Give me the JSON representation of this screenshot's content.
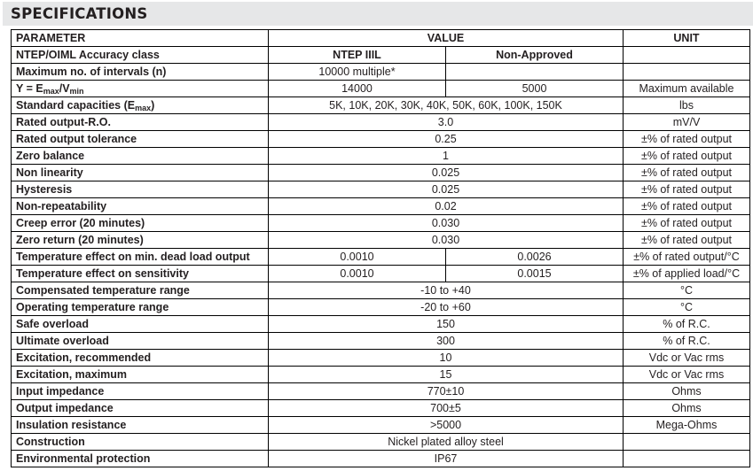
{
  "title": "SPECIFICATIONS",
  "headers": {
    "parameter": "PARAMETER",
    "value": "VALUE",
    "unit": "UNIT"
  },
  "accuracy": {
    "label": "NTEP/OIML Accuracy class",
    "v1": "NTEP IIIL",
    "v2": "Non-Approved"
  },
  "intervals": {
    "label": "Maximum no. of intervals (n)",
    "v1": "10000 multiple*"
  },
  "y": {
    "label_a": "Y = E",
    "sub1": "max",
    "label_b": "/V",
    "sub2": "min",
    "v1": "14000",
    "v2": "5000",
    "unit": "Maximum available"
  },
  "capacities": {
    "label_a": "Standard capacities (E",
    "sub": "max",
    "label_b": ")",
    "value": "5K, 10K, 20K, 30K, 40K, 50K, 60K, 100K, 150K",
    "unit": "lbs"
  },
  "rows_a": [
    {
      "p": "Rated output-R.O.",
      "v": "3.0",
      "u": "mV/V"
    },
    {
      "p": "Rated output tolerance",
      "v": "0.25",
      "u": "±% of rated output"
    },
    {
      "p": "Zero balance",
      "v": "1",
      "u": "±% of rated output"
    },
    {
      "p": "Non linearity",
      "v": "0.025",
      "u": "±% of rated output"
    },
    {
      "p": "Hysteresis",
      "v": "0.025",
      "u": "±% of rated output"
    },
    {
      "p": "Non-repeatability",
      "v": "0.02",
      "u": "±% of rated output"
    },
    {
      "p": "Creep error (20 minutes)",
      "v": "0.030",
      "u": "±% of rated output"
    },
    {
      "p": "Zero return (20 minutes)",
      "v": "0.030",
      "u": "±% of rated output"
    }
  ],
  "rows_split": [
    {
      "p": "Temperature effect on min. dead load output",
      "v1": "0.0010",
      "v2": "0.0026",
      "u": "±% of rated output/°C"
    },
    {
      "p": "Temperature effect on sensitivity",
      "v1": "0.0010",
      "v2": "0.0015",
      "u": "±% of applied load/°C"
    }
  ],
  "rows_b": [
    {
      "p": "Compensated temperature range",
      "v": "-10 to +40",
      "u": "°C"
    },
    {
      "p": "Operating temperature range",
      "v": "-20 to +60",
      "u": "°C"
    },
    {
      "p": "Safe overload",
      "v": "150",
      "u": "% of R.C."
    },
    {
      "p": "Ultimate overload",
      "v": "300",
      "u": "% of R.C."
    },
    {
      "p": "Excitation, recommended",
      "v": "10",
      "u": "Vdc or Vac rms"
    },
    {
      "p": "Excitation, maximum",
      "v": "15",
      "u": "Vdc or Vac rms"
    },
    {
      "p": "Input impedance",
      "v": "770±10",
      "u": "Ohms"
    },
    {
      "p": "Output impedance",
      "v": "700±5",
      "u": "Ohms"
    },
    {
      "p": "Insulation resistance",
      "v": ">5000",
      "u": "Mega-Ohms"
    },
    {
      "p": "Construction",
      "v": "Nickel plated alloy steel",
      "u": ""
    },
    {
      "p": "Environmental protection",
      "v": "IP67",
      "u": ""
    }
  ]
}
